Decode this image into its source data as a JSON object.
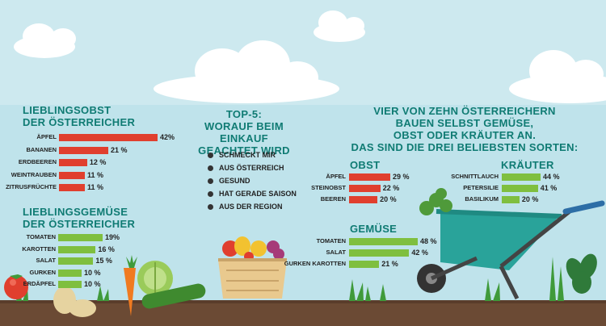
{
  "palette": {
    "sky": "#bfe3eb",
    "sky_upper": "#cde9ef",
    "teal_title": "#0f7b73",
    "fruit_bar": "#e03f2e",
    "veg_bar": "#7fbf3f",
    "soil": "#6b4a34"
  },
  "panels": {
    "fruit": {
      "title_line1": "LIEBLINGSOBST",
      "title_line2": "DER ÖSTERREICHER"
    },
    "veg": {
      "title_line1": "LIEBLINGSGEMÜSE",
      "title_line2": "DER ÖSTERREICHER"
    },
    "top5": {
      "title_line1": "TOP-5:",
      "title_line2": "WORAUF BEIM EINKAUF",
      "title_line3": "GEACHTET WIRD",
      "items": [
        "SCHMECKT MIR",
        "AUS ÖSTERREICH",
        "GESUND",
        "HAT GERADE SAISON",
        "AUS DER REGION"
      ]
    },
    "garden": {
      "title_line1": "VIER VON ZEHN ÖSTERREICHERN",
      "title_line2": "BAUEN SELBST GEMÜSE,",
      "title_line3": "OBST ODER KRÄUTER AN.",
      "title_line4": "DAS SIND DIE DREI BELIEBSTEN SORTEN:",
      "obst_label": "OBST",
      "krauter_label": "KRÄUTER",
      "gemuse_label": "GEMÜSE"
    }
  },
  "icons": [
    "cloud-icon",
    "tomato-icon",
    "potato-icon",
    "carrot-icon",
    "cabbage-icon",
    "cucumber-icon",
    "fruit-basket-icon",
    "wheelbarrow-icon",
    "herb-plant-icon",
    "grass-icon"
  ],
  "chart_data": [
    {
      "type": "bar",
      "title": "LIEBLINGSOBST DER ÖSTERREICHER",
      "categories": [
        "ÄPFEL",
        "BANANEN",
        "ERDBEEREN",
        "WEINTRAUBEN",
        "ZITRUSFRÜCHTE"
      ],
      "values": [
        42,
        21,
        12,
        11,
        11
      ],
      "value_labels": [
        "42%",
        "21 %",
        "12 %",
        "11 %",
        "11 %"
      ],
      "orientation": "horizontal",
      "color": "#e03f2e"
    },
    {
      "type": "bar",
      "title": "LIEBLINGSGEMÜSE DER ÖSTERREICHER",
      "categories": [
        "TOMATEN",
        "KAROTTEN",
        "SALAT",
        "GURKEN",
        "ERDÄPFEL"
      ],
      "values": [
        19,
        16,
        15,
        10,
        10
      ],
      "value_labels": [
        "19%",
        "16 %",
        "15 %",
        "10 %",
        "10 %"
      ],
      "orientation": "horizontal",
      "color": "#7fbf3f"
    },
    {
      "type": "bar",
      "title": "OBST",
      "categories": [
        "ÄPFEL",
        "STEINOBST",
        "BEEREN"
      ],
      "values": [
        29,
        22,
        20
      ],
      "value_labels": [
        "29 %",
        "22 %",
        "20 %"
      ],
      "orientation": "horizontal",
      "color": "#e03f2e"
    },
    {
      "type": "bar",
      "title": "KRÄUTER",
      "categories": [
        "SCHNITTLAUCH",
        "PETERSILIE",
        "BASILIKUM"
      ],
      "values": [
        44,
        41,
        20
      ],
      "value_labels": [
        "44 %",
        "41 %",
        "20 %"
      ],
      "orientation": "horizontal",
      "color": "#7fbf3f"
    },
    {
      "type": "bar",
      "title": "GEMÜSE",
      "categories": [
        "TOMATEN",
        "SALAT",
        "GURKEN KAROTTEN"
      ],
      "values": [
        48,
        42,
        21
      ],
      "value_labels": [
        "48 %",
        "42 %",
        "21 %"
      ],
      "orientation": "horizontal",
      "color": "#7fbf3f"
    }
  ]
}
